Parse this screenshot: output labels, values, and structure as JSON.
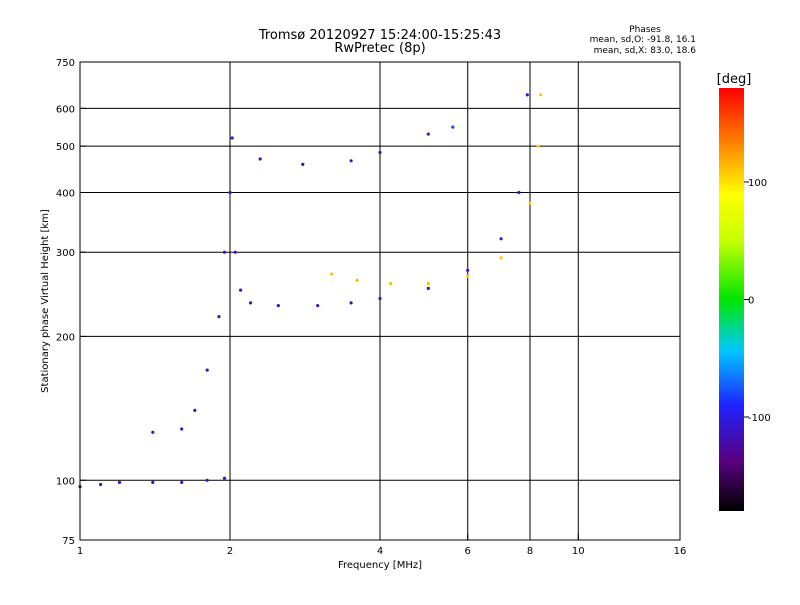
{
  "header": {
    "title": "Tromsø 20120927 15:24:00-15:25:43",
    "subtitle": "RwPretec (8p)",
    "phase_title": "Phases",
    "phase_o": "mean, sd,O: -91.8, 16.1",
    "phase_x": "mean, sd,X: 83.0, 18.6"
  },
  "chart_data": {
    "type": "scatter",
    "xlabel": "Frequency [MHz]",
    "ylabel": "Stationary phase Virtual Height [km]",
    "xscale": "log2",
    "yscale": "log",
    "xlim": [
      1,
      16
    ],
    "ylim": [
      75,
      750
    ],
    "x_ticks": [
      1,
      2,
      4,
      6,
      8,
      10,
      16
    ],
    "y_ticks": [
      75,
      100,
      200,
      300,
      400,
      500,
      600,
      750
    ],
    "x_gridlines": [
      2,
      4,
      6,
      8,
      10
    ],
    "y_gridlines": [
      100,
      200,
      300,
      400,
      500,
      600
    ],
    "grid": true,
    "colorbar": {
      "label": "[deg]",
      "range": [
        -180,
        180
      ],
      "ticks": [
        100,
        0,
        -100
      ]
    },
    "series": [
      {
        "points": [
          [
            1.0,
            97,
            -110
          ],
          [
            1.1,
            98,
            -112
          ],
          [
            1.2,
            99,
            -108
          ],
          [
            1.4,
            99,
            -112
          ],
          [
            1.6,
            99,
            -110
          ],
          [
            1.8,
            100,
            -112
          ],
          [
            1.95,
            101,
            -108
          ]
        ]
      },
      {
        "points": [
          [
            1.4,
            126,
            -112
          ],
          [
            1.6,
            128,
            -108
          ],
          [
            1.7,
            140,
            -110
          ],
          [
            1.8,
            170,
            -108
          ],
          [
            1.9,
            220,
            -112
          ],
          [
            1.95,
            300,
            -108
          ],
          [
            2.0,
            400,
            -110
          ],
          [
            2.02,
            520,
            -105
          ]
        ]
      },
      {
        "points": [
          [
            2.05,
            300,
            -108
          ],
          [
            2.1,
            250,
            -110
          ],
          [
            2.2,
            235,
            -110
          ],
          [
            2.5,
            232,
            -112
          ],
          [
            3.0,
            232,
            -115
          ],
          [
            3.5,
            235,
            -115
          ],
          [
            4.0,
            240,
            -112
          ],
          [
            5.0,
            252,
            -110
          ],
          [
            6.0,
            275,
            -110
          ],
          [
            7.0,
            320,
            -105
          ],
          [
            7.6,
            400,
            -108
          ],
          [
            7.9,
            640,
            -110
          ]
        ]
      },
      {
        "points": [
          [
            3.2,
            270,
            112
          ],
          [
            3.6,
            262,
            115
          ],
          [
            4.2,
            258,
            112
          ],
          [
            5.0,
            258,
            110
          ],
          [
            6.0,
            267,
            108
          ],
          [
            7.0,
            292,
            110
          ],
          [
            8.0,
            380,
            108
          ],
          [
            8.3,
            500,
            105
          ],
          [
            8.4,
            640,
            108
          ]
        ]
      },
      {
        "points": [
          [
            2.3,
            470,
            -110
          ],
          [
            2.8,
            458,
            -115
          ],
          [
            3.5,
            466,
            -110
          ],
          [
            4.0,
            485,
            -108
          ],
          [
            5.0,
            530,
            -100
          ],
          [
            5.6,
            548,
            -80
          ]
        ]
      }
    ]
  }
}
